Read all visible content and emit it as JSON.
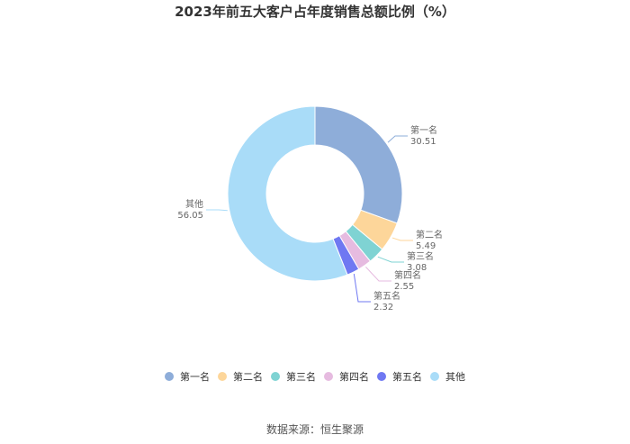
{
  "chart_data": {
    "type": "pie",
    "title": "2023年前五大客户占年度销售总额比例（%）",
    "categories": [
      "第一名",
      "第二名",
      "第三名",
      "第四名",
      "第五名",
      "其他"
    ],
    "values": [
      30.51,
      5.49,
      3.08,
      2.55,
      2.32,
      56.05
    ],
    "value_labels": [
      "30.51",
      "5.49",
      "3.08",
      "2.55",
      "2.32",
      "56.05"
    ],
    "colors": [
      "#8eadd9",
      "#fdd69a",
      "#7fd3d3",
      "#e6bbe0",
      "#6f78f2",
      "#a9dcf8"
    ],
    "donut": true,
    "legend": "bottom"
  },
  "source": "数据来源：恒生聚源"
}
